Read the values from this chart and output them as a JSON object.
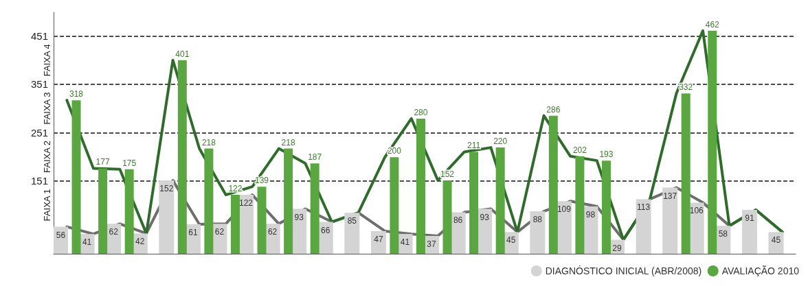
{
  "chart_data": {
    "type": "bar",
    "categories": [
      null,
      null,
      null,
      null,
      null,
      null,
      null,
      null,
      null,
      null,
      null,
      null,
      null,
      null,
      null,
      null,
      null,
      null,
      null,
      null,
      null,
      null,
      null,
      null,
      null,
      null,
      null,
      null
    ],
    "series": [
      {
        "name": "DIAGNÓSTICO INICIAL (ABR/2008)",
        "color": "#d4d4d4",
        "values": [
          56,
          41,
          62,
          42,
          152,
          61,
          62,
          122,
          62,
          93,
          66,
          85,
          47,
          41,
          37,
          86,
          93,
          45,
          88,
          109,
          98,
          29,
          113,
          137,
          106,
          58,
          91,
          45
        ],
        "value_labels": [
          "56",
          "41",
          "62",
          "42",
          "152",
          "61",
          "62",
          "122",
          "62",
          "93",
          "66",
          "85",
          "47",
          "41",
          "37",
          "86",
          "93",
          "45",
          "88",
          "109",
          "98",
          "29",
          "113",
          "137",
          "106",
          "58",
          "91",
          "45"
        ]
      },
      {
        "name": "AVALIAÇÃO 2010",
        "color": "#5aa641",
        "values": [
          318,
          177,
          175,
          null,
          401,
          218,
          122,
          139,
          218,
          187,
          null,
          null,
          200,
          280,
          152,
          211,
          220,
          null,
          286,
          202,
          193,
          null,
          null,
          332,
          462,
          null,
          null,
          null
        ],
        "value_labels": [
          "318",
          "177",
          "175",
          null,
          "401",
          "218",
          "122",
          "139",
          "218",
          "187",
          null,
          null,
          "200",
          "280",
          "152",
          "211",
          "220",
          null,
          "286",
          "202",
          "193",
          null,
          null,
          "332",
          "462",
          null,
          null,
          null
        ]
      },
      {
        "type": "line",
        "color": "#6e6e6e",
        "values": [
          56,
          41,
          62,
          42,
          152,
          61,
          62,
          122,
          62,
          93,
          66,
          85,
          47,
          41,
          37,
          86,
          93,
          45,
          88,
          109,
          98,
          29,
          113,
          137,
          106,
          58,
          91,
          45
        ]
      },
      {
        "type": "line",
        "color": "#2f6b2a",
        "values": [
          318,
          177,
          175,
          42,
          401,
          218,
          122,
          139,
          218,
          187,
          66,
          85,
          200,
          280,
          152,
          211,
          220,
          45,
          286,
          202,
          193,
          29,
          113,
          332,
          462,
          58,
          91,
          45
        ]
      }
    ],
    "ylim": [
      0,
      500
    ],
    "yticks": [
      151,
      251,
      351,
      451
    ],
    "grid": "y",
    "legend": "bottom right",
    "tick_labels": "y",
    "marker": "none",
    "annotations": [
      "FAIXA 1",
      "FAIXA 2",
      "FAIXA 3",
      "FAIXA 4"
    ]
  }
}
